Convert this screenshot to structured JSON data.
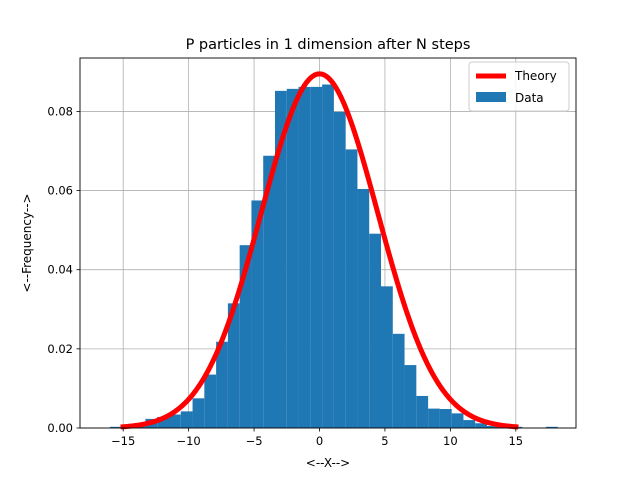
{
  "chart_data": {
    "type": "bar",
    "title": "P particles in 1 dimension after N steps",
    "xlabel": "<--X-->",
    "ylabel": "<--Frequency-->",
    "xlim": [
      -18.3,
      19.6
    ],
    "ylim": [
      0,
      0.0935
    ],
    "grid": true,
    "legend_position": "top-right",
    "xticks": [
      -15,
      -10,
      -5,
      0,
      5,
      10,
      15
    ],
    "xtick_labels": [
      "−15",
      "−10",
      "−5",
      "0",
      "5",
      "10",
      "15"
    ],
    "yticks": [
      0,
      0.02,
      0.04,
      0.06,
      0.08
    ],
    "ytick_labels": [
      "0.00",
      "0.02",
      "0.04",
      "0.06",
      "0.08"
    ],
    "histogram": {
      "name": "Data",
      "color": "#1f77b4",
      "bin_edges": [
        -16.0,
        -15.1,
        -14.2,
        -13.3,
        -12.4,
        -11.5,
        -10.6,
        -9.7,
        -8.8,
        -7.9,
        -7.0,
        -6.1,
        -5.2,
        -4.3,
        -3.4,
        -2.5,
        -1.6,
        -0.7,
        0.2,
        1.1,
        2.0,
        2.9,
        3.8,
        4.7,
        5.6,
        6.5,
        7.4,
        8.3,
        9.2,
        10.1,
        11.0,
        11.9,
        12.8,
        13.7,
        14.6,
        15.5,
        16.4,
        17.3,
        18.2
      ],
      "values": [
        0.0003,
        0.0003,
        0.0006,
        0.0023,
        0.0028,
        0.0034,
        0.0042,
        0.0075,
        0.0135,
        0.0218,
        0.0315,
        0.0462,
        0.0575,
        0.0688,
        0.0852,
        0.0857,
        0.0862,
        0.0862,
        0.0868,
        0.0799,
        0.0704,
        0.0604,
        0.0491,
        0.0358,
        0.0238,
        0.0159,
        0.0081,
        0.0049,
        0.0048,
        0.0037,
        0.002,
        0.0012,
        0.0005,
        0.0003,
        0.0003,
        0.0,
        0.0,
        0.0003
      ]
    },
    "theory": {
      "name": "Theory",
      "color": "#ff0000",
      "type": "gaussian",
      "mean": 0,
      "peak": 0.0895,
      "sigma": 4.46,
      "x_range": [
        -15.2,
        15.2
      ]
    }
  }
}
